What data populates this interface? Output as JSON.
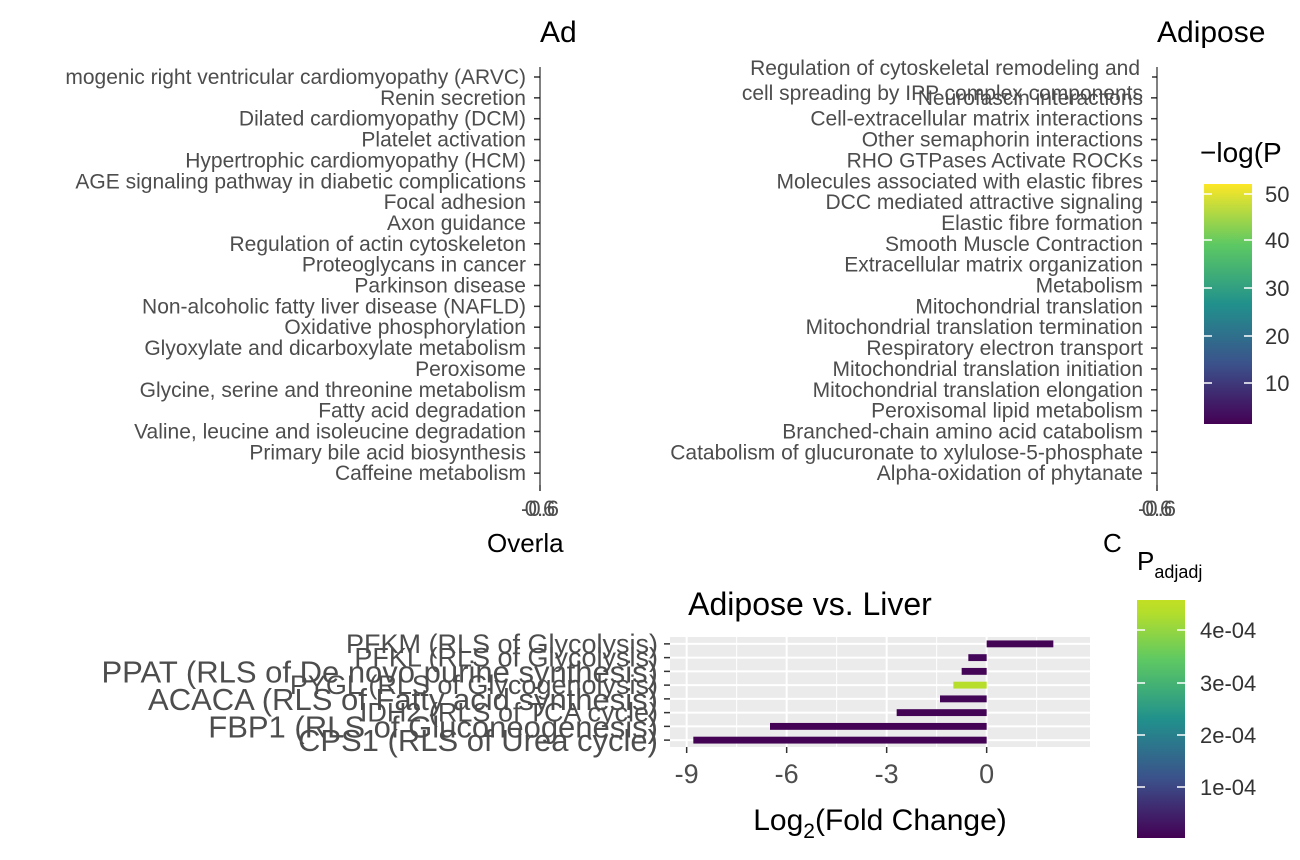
{
  "panels": {
    "top_left": {
      "title": "Ad",
      "xlabel": "Overla",
      "tick_labels": [
        "-0.6",
        "0.6"
      ],
      "terms": [
        "mogenic right ventricular cardiomyopathy (ARVC)",
        "Renin secretion",
        "Dilated cardiomyopathy (DCM)",
        "Platelet activation",
        "Hypertrophic cardiomyopathy (HCM)",
        "AGE signaling pathway in diabetic complications",
        "Focal adhesion",
        "Axon guidance",
        "Regulation of actin cytoskeleton",
        "Proteoglycans in cancer",
        "Parkinson disease",
        "Non-alcoholic fatty liver disease (NAFLD)",
        "Oxidative phosphorylation",
        "Glyoxylate and dicarboxylate metabolism",
        "Peroxisome",
        "Glycine, serine and threonine metabolism",
        "Fatty acid degradation",
        "Valine, leucine and isoleucine degradation",
        "Primary bile acid biosynthesis",
        "Caffeine metabolism"
      ]
    },
    "top_right": {
      "title": "Adipose",
      "xlabel": "C",
      "tick_labels": [
        "-0.6",
        "0.6"
      ],
      "terms": [
        "Regulation of cytoskeletal remodeling and\ncell spreading by IPP complex components",
        "Neurofascin interactions",
        "Cell-extracellular matrix interactions",
        "Other semaphorin interactions",
        "RHO GTPases Activate ROCKs",
        "Molecules associated with elastic fibres",
        "DCC mediated attractive signaling",
        "Elastic fibre formation",
        "Smooth Muscle Contraction",
        "Extracellular matrix organization",
        "Metabolism",
        "Mitochondrial translation",
        "Mitochondrial translation termination",
        "Respiratory electron transport",
        "Mitochondrial translation initiation",
        "Mitochondrial translation elongation",
        "Peroxisomal lipid metabolism",
        "Branched-chain amino acid catabolism",
        "Catabolism of glucuronate to xylulose-5-phosphate",
        "Alpha-oxidation of phytanate"
      ]
    },
    "legend_top": {
      "title": "−log(P",
      "ticks": [
        "50",
        "40",
        "30",
        "20",
        "10"
      ]
    },
    "legend_bottom": {
      "title": "P",
      "title_sub": "adjadj",
      "ticks": [
        "4e-04",
        "3e-04",
        "2e-04",
        "1e-04"
      ]
    }
  },
  "chart_data": {
    "type": "bar",
    "title": "Adipose vs. Liver",
    "xlabel": "Log2(Fold Change)",
    "xlabel_parts": [
      "Log",
      "2",
      "(Fold Change)"
    ],
    "xlim": [
      -9.5,
      3.1
    ],
    "xticks": [
      -9,
      -6,
      -3,
      0
    ],
    "xtick_labels": [
      "-9",
      "-6",
      "-3",
      "0"
    ],
    "grid": true,
    "colorbar": {
      "name": "P_adjadj",
      "range": [
        0,
        0.00048
      ]
    },
    "categories": [
      "PFKM (RLS of Glycolysis)",
      "PFKL (RLS of Glycolysis)",
      "PPAT (RLS of De novo purine synthesis)",
      "PYGL (RLS of Glycogenolysis)",
      "ACACA (RLS of Fatty acid synthesis)",
      "IDH2 (RLS of TCA cycle)",
      "FBP1 (RLS of Gluconeogenesis)",
      "CPS1 (RLS of Urea cycle)"
    ],
    "values": [
      2.0,
      -0.55,
      -0.75,
      -1.0,
      -1.4,
      -2.7,
      -6.5,
      -8.8
    ],
    "padj": [
      5e-06,
      8e-06,
      6e-06,
      0.00046,
      7e-06,
      4e-06,
      3e-06,
      2e-06
    ],
    "label_sizes": [
      "normal",
      "normal",
      "large",
      "normal",
      "large",
      "normal",
      "large",
      "large"
    ]
  },
  "colors": {
    "viridis": [
      "#440154",
      "#3b528b",
      "#21918c",
      "#5ec962",
      "#fde725"
    ],
    "panel_bg": "#ebebeb",
    "grid": "#ffffff",
    "axis_text": "#4d4d4d"
  }
}
